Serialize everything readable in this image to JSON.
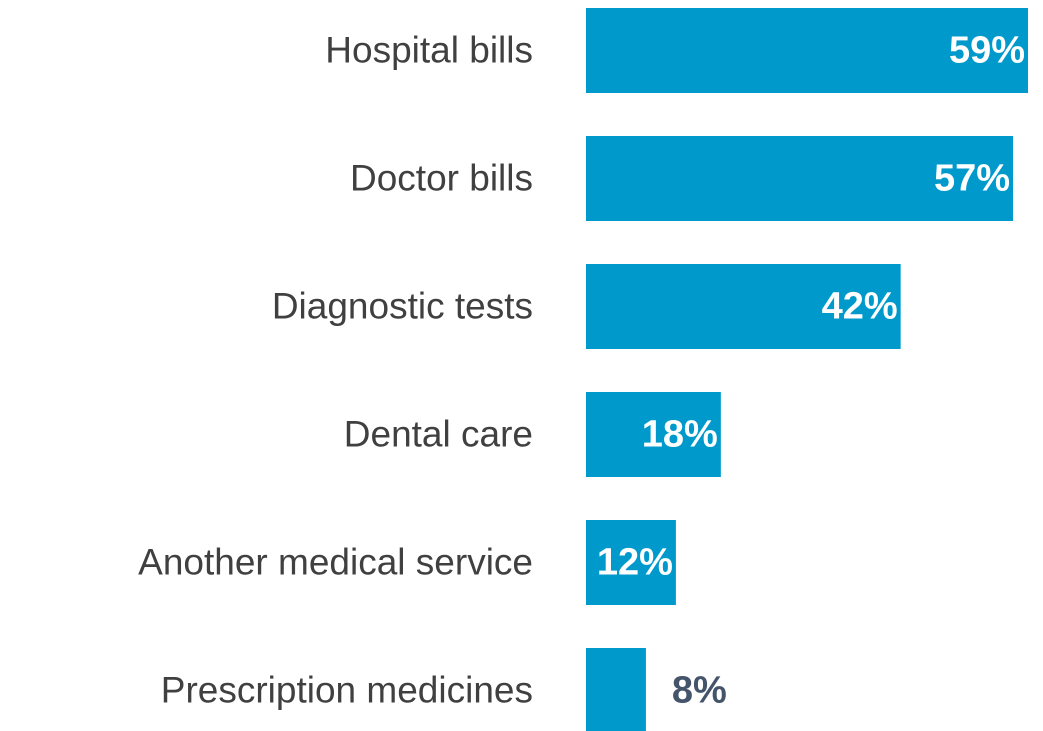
{
  "chart_data": {
    "type": "bar",
    "orientation": "horizontal",
    "categories": [
      "Hospital bills",
      "Doctor bills",
      "Diagnostic tests",
      "Dental care",
      "Another medical service",
      "Prescription medicines"
    ],
    "values": [
      59,
      57,
      42,
      18,
      12,
      8
    ],
    "value_labels": [
      "59%",
      "57%",
      "42%",
      "18%",
      "12%",
      "8%"
    ],
    "color": "#0099cc"
  }
}
